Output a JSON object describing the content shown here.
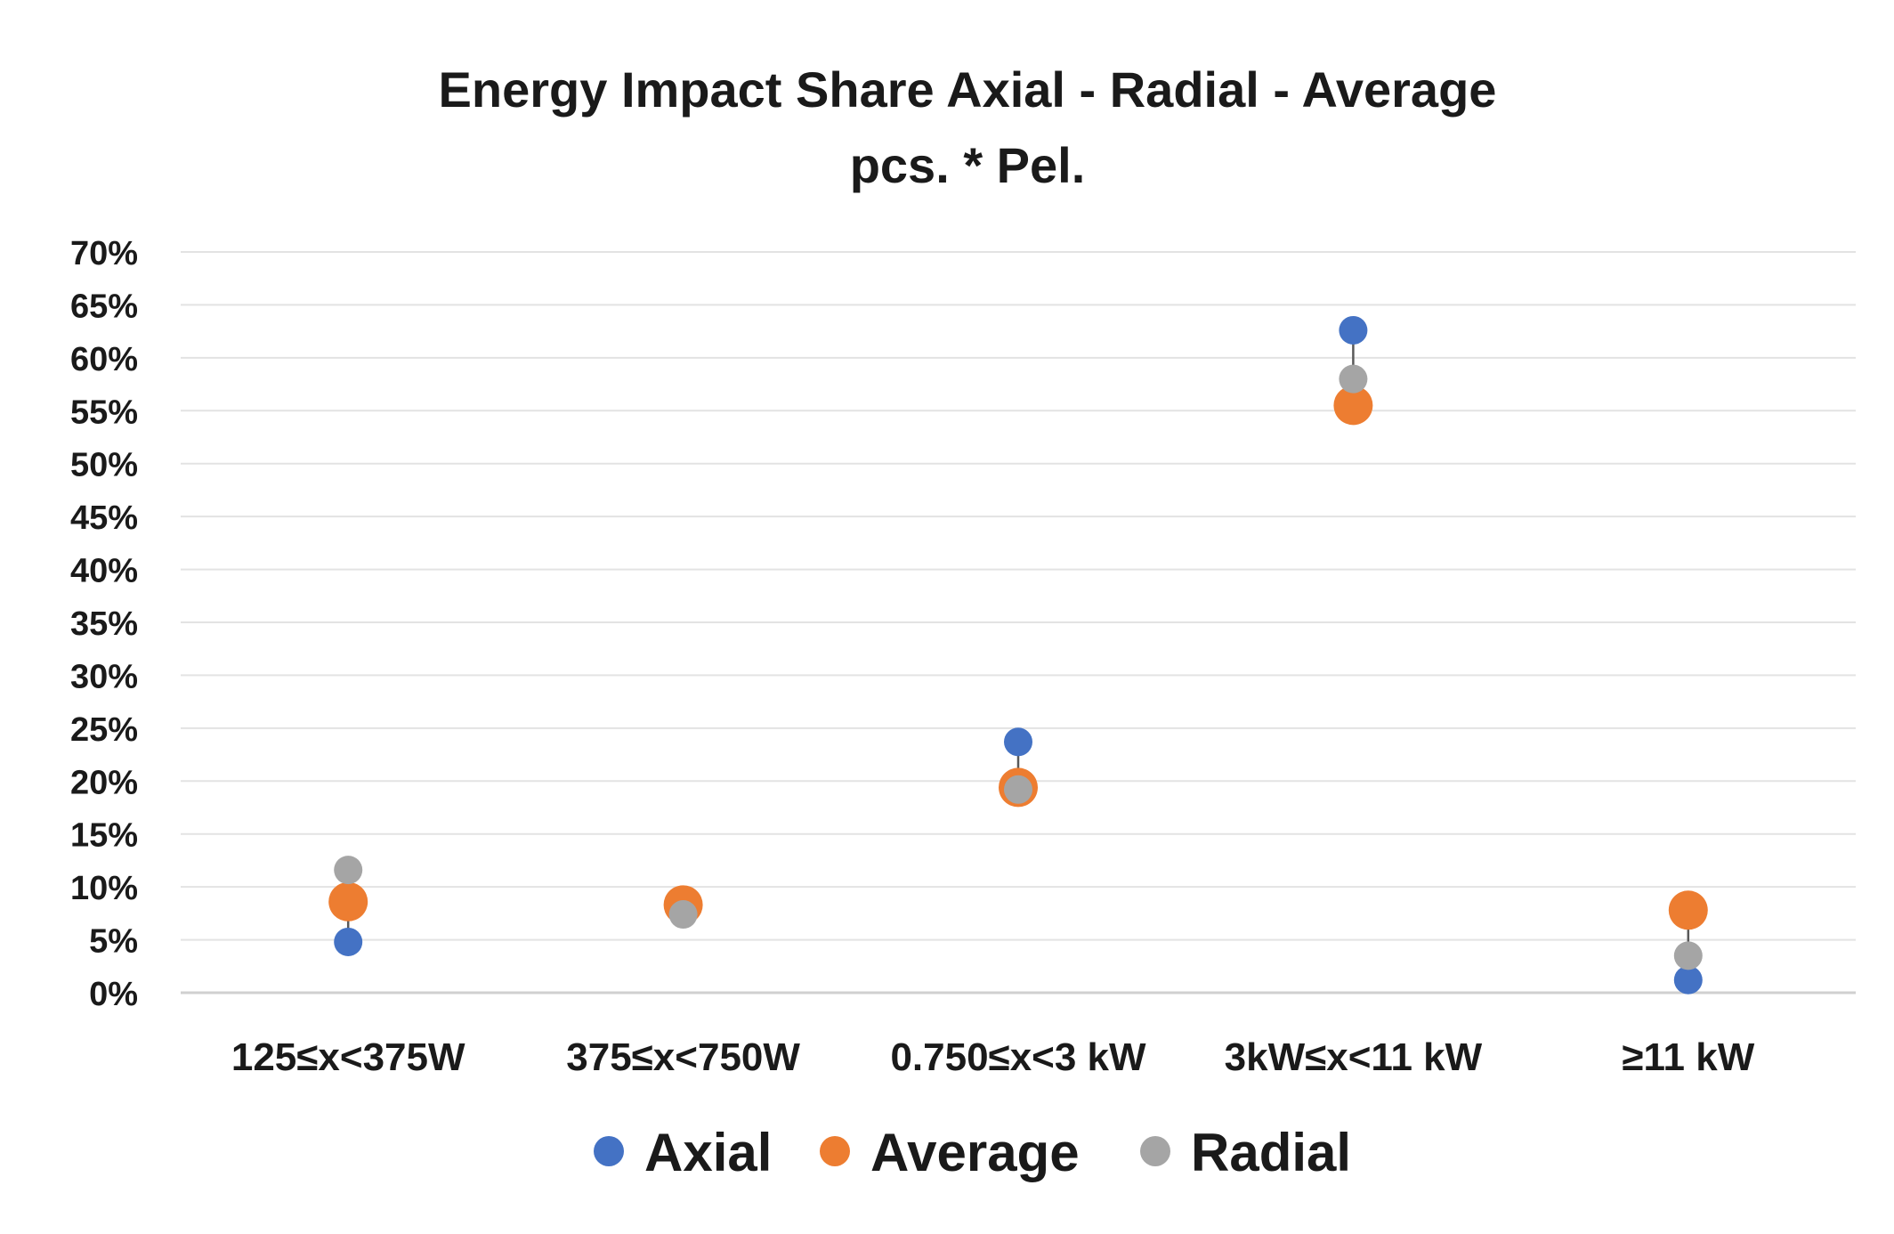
{
  "chart_data": {
    "type": "scatter",
    "title": "Energy Impact Share Axial - Radial - Average",
    "subtitle": "pcs. * Pel.",
    "categories": [
      "125≤x<375W",
      "375≤x<750W",
      "0.750≤x<3 kW",
      "3kW≤x<11 kW",
      "≥11 kW"
    ],
    "ylim": [
      0,
      70
    ],
    "yticks": [
      0,
      5,
      10,
      15,
      20,
      25,
      30,
      35,
      40,
      45,
      50,
      55,
      60,
      65,
      70
    ],
    "ytick_labels": [
      "0%",
      "5%",
      "10%",
      "15%",
      "20%",
      "25%",
      "30%",
      "35%",
      "40%",
      "45%",
      "50%",
      "55%",
      "60%",
      "65%",
      "70%"
    ],
    "grid": true,
    "legend_position": "bottom",
    "series": [
      {
        "name": "Axial",
        "color": "#4472C4",
        "values": [
          4.8,
          7.6,
          23.7,
          62.6,
          1.2
        ]
      },
      {
        "name": "Average",
        "color": "#ED7D31",
        "values": [
          8.6,
          8.3,
          19.4,
          55.5,
          7.8
        ]
      },
      {
        "name": "Radial",
        "color": "#A5A5A5",
        "values": [
          11.6,
          7.4,
          19.2,
          58.0,
          3.5
        ]
      }
    ],
    "connector_color": "#595959"
  }
}
